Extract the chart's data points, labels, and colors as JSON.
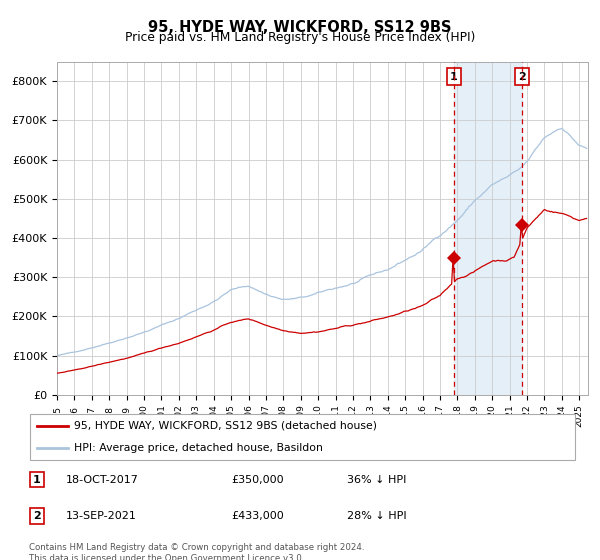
{
  "title": "95, HYDE WAY, WICKFORD, SS12 9BS",
  "subtitle": "Price paid vs. HM Land Registry's House Price Index (HPI)",
  "sale1_label": "1",
  "sale1_date": "18-OCT-2017",
  "sale1_price": 350000,
  "sale1_pct": "36% ↓ HPI",
  "sale1_year": 2017.79,
  "sale2_label": "2",
  "sale2_date": "13-SEP-2021",
  "sale2_price": 433000,
  "sale2_pct": "28% ↓ HPI",
  "sale2_year": 2021.71,
  "legend_line1": "95, HYDE WAY, WICKFORD, SS12 9BS (detached house)",
  "legend_line2": "HPI: Average price, detached house, Basildon",
  "footer": "Contains HM Land Registry data © Crown copyright and database right 2024.\nThis data is licensed under the Open Government Licence v3.0.",
  "hpi_color": "#aac4de",
  "property_color": "#cc0000",
  "background_shaded": "#e4eff8",
  "grid_color": "#cccccc",
  "start_year": 1995.0,
  "end_year": 2025.5,
  "ylim_max": 850000,
  "yticks": [
    0,
    100000,
    200000,
    300000,
    400000,
    500000,
    600000,
    700000,
    800000
  ],
  "ytick_labels": [
    "£0",
    "£100K",
    "£200K",
    "£300K",
    "£400K",
    "£500K",
    "£600K",
    "£700K",
    "£800K"
  ]
}
